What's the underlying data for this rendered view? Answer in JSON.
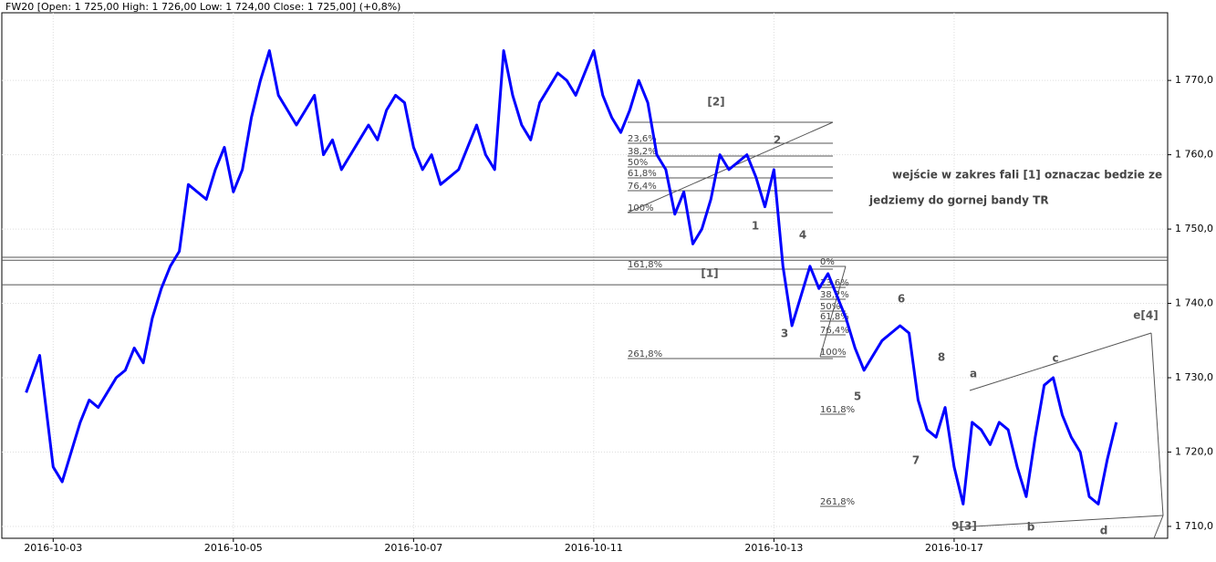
{
  "chart_data": {
    "type": "line",
    "title": "FW20 [Open: 1 725,00  High: 1 726,00  Low: 1 724,00  Close: 1 725,00] (+0,8%)",
    "x": [
      -0.3,
      -0.15,
      0,
      0.1,
      0.2,
      0.3,
      0.4,
      0.5,
      0.6,
      0.7,
      0.8,
      0.9,
      1,
      1.1,
      1.2,
      1.3,
      1.4,
      1.5,
      1.6,
      1.7,
      1.8,
      1.9,
      2,
      2.1,
      2.2,
      2.3,
      2.4,
      2.5,
      2.6,
      2.7,
      2.8,
      2.9,
      3,
      3.1,
      3.2,
      3.3,
      3.4,
      3.5,
      3.6,
      3.7,
      3.8,
      3.9,
      4,
      4.1,
      4.2,
      4.3,
      4.4,
      4.5,
      4.6,
      4.7,
      4.8,
      4.9,
      5,
      5.1,
      5.2,
      5.3,
      5.4,
      5.5,
      5.6,
      5.7,
      5.8,
      5.9,
      6,
      6.1,
      6.2,
      6.3,
      6.4,
      6.5,
      6.6,
      6.7,
      6.8,
      6.9,
      7,
      7.1,
      7.2,
      7.3,
      7.4,
      7.5,
      7.6,
      7.7,
      7.8,
      7.9,
      8,
      8.1,
      8.2,
      8.3,
      8.4,
      8.5,
      8.6,
      8.7,
      8.8,
      8.9,
      9,
      9.1,
      9.2,
      9.3,
      9.4,
      9.5,
      9.6,
      9.7,
      9.8,
      9.9,
      10,
      10.1,
      10.2,
      10.3,
      10.4,
      10.5,
      10.6,
      10.7,
      10.8,
      10.9,
      11,
      11.1,
      11.2,
      11.3,
      11.4,
      11.5,
      11.6,
      11.7,
      11.8
    ],
    "series": [
      {
        "name": "FW20",
        "color": "#0000ff",
        "values": [
          1728,
          1733,
          1718,
          1716,
          1720,
          1724,
          1727,
          1726,
          1728,
          1730,
          1731,
          1734,
          1732,
          1738,
          1742,
          1745,
          1747,
          1756,
          1755,
          1754,
          1758,
          1761,
          1755,
          1758,
          1765,
          1770,
          1774,
          1768,
          1766,
          1764,
          1766,
          1768,
          1760,
          1762,
          1758,
          1760,
          1762,
          1764,
          1762,
          1766,
          1768,
          1767,
          1761,
          1758,
          1760,
          1756,
          1757,
          1758,
          1761,
          1764,
          1760,
          1758,
          1774,
          1768,
          1764,
          1762,
          1767,
          1769,
          1771,
          1770,
          1768,
          1771,
          1774,
          1768,
          1765,
          1763,
          1766,
          1770,
          1767,
          1760,
          1758,
          1752,
          1755,
          1748,
          1750,
          1754,
          1760,
          1758,
          1759,
          1760,
          1757,
          1753,
          1758,
          1745,
          1737,
          1741,
          1745,
          1742,
          1744,
          1741,
          1738,
          1734,
          1731,
          1733,
          1735,
          1736,
          1737,
          1736,
          1727,
          1723,
          1722,
          1726,
          1718,
          1713,
          1724,
          1723,
          1721,
          1724,
          1723,
          1718,
          1714,
          1722,
          1729,
          1730,
          1725,
          1722,
          1720,
          1714,
          1713,
          1719,
          1724
        ]
      }
    ],
    "xlim": [
      -0.57,
      12.37
    ],
    "xticks": [
      {
        "value": 0,
        "label": "2016-10-03"
      },
      {
        "value": 2,
        "label": "2016-10-05"
      },
      {
        "value": 4,
        "label": "2016-10-07"
      },
      {
        "value": 6,
        "label": "2016-10-11"
      },
      {
        "value": 8,
        "label": "2016-10-13"
      },
      {
        "value": 10,
        "label": "2016-10-17"
      }
    ],
    "ylim": [
      1708.4,
      1779.1
    ],
    "yticks": [
      {
        "value": 1710,
        "label": "1 710,0"
      },
      {
        "value": 1720,
        "label": "1 720,0"
      },
      {
        "value": 1730,
        "label": "1 730,0"
      },
      {
        "value": 1740,
        "label": "1 740,0"
      },
      {
        "value": 1750,
        "label": "1 750,0"
      },
      {
        "value": 1760,
        "label": "1 760,0"
      },
      {
        "value": 1770,
        "label": "1 770,0"
      }
    ],
    "grid": true,
    "hlines": [
      1746.2,
      1745.8,
      1742.5
    ],
    "fib_labels_1": [
      "23,6%",
      "38,2%",
      "50%",
      "61,8%",
      "76,4%",
      "100%",
      "161,8%",
      "261,8%"
    ],
    "fib_labels_2": [
      "0%",
      "23,6%",
      "38,2%",
      "50%",
      "61,8%",
      "76,4%",
      "100%",
      "161,8%",
      "261,8%"
    ],
    "wave_labels": [
      "[2]",
      "2",
      "1",
      "[1]",
      "4",
      "3",
      "6",
      "5",
      "8",
      "7",
      "a",
      "c",
      "e[4]",
      "9[3]",
      "b",
      "d"
    ],
    "annotations": [
      "wejście w zakres fali [1] oznaczac bedzie ze",
      "jedziemy do gornej bandy TR"
    ]
  }
}
